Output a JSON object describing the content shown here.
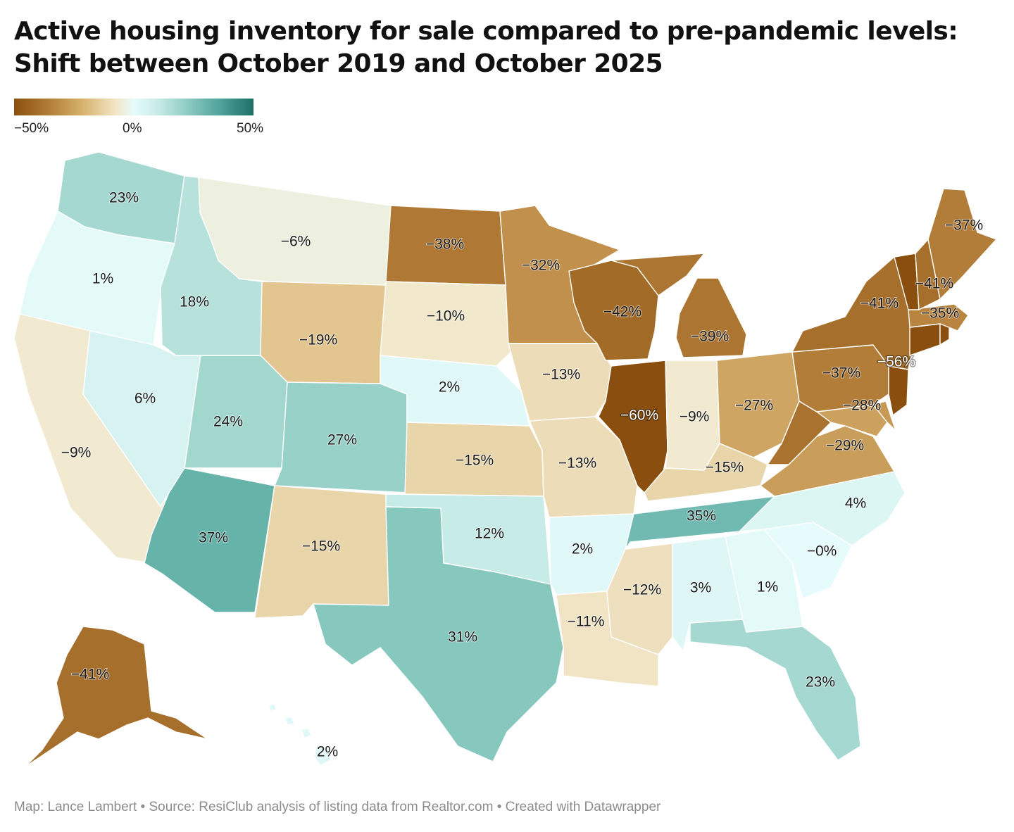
{
  "title": {
    "line1": "Active housing inventory for sale compared to pre-pandemic levels:",
    "line2": "Shift between October 2019 and October 2025"
  },
  "legend": {
    "min_label": "−50%",
    "mid_label": "0%",
    "max_label": "50%",
    "scale_min": -50,
    "scale_max": 50,
    "color_low": "#8a4f0e",
    "color_mid": "#e6fbfb",
    "color_high": "#1d6f66"
  },
  "states": [
    {
      "id": "WA",
      "value": 23,
      "label": "23%"
    },
    {
      "id": "OR",
      "value": 1,
      "label": "1%"
    },
    {
      "id": "CA",
      "value": -9,
      "label": "−9%"
    },
    {
      "id": "ID",
      "value": 18,
      "label": "18%"
    },
    {
      "id": "NV",
      "value": 6,
      "label": "6%"
    },
    {
      "id": "MT",
      "value": -6,
      "label": "−6%"
    },
    {
      "id": "WY",
      "value": -19,
      "label": "−19%"
    },
    {
      "id": "UT",
      "value": 24,
      "label": "24%"
    },
    {
      "id": "AZ",
      "value": 37,
      "label": "37%"
    },
    {
      "id": "CO",
      "value": 27,
      "label": "27%"
    },
    {
      "id": "NM",
      "value": -15,
      "label": "−15%"
    },
    {
      "id": "ND",
      "value": -38,
      "label": "−38%"
    },
    {
      "id": "SD",
      "value": -10,
      "label": "−10%"
    },
    {
      "id": "NE",
      "value": 2,
      "label": "2%"
    },
    {
      "id": "KS",
      "value": -15,
      "label": "−15%"
    },
    {
      "id": "OK",
      "value": 12,
      "label": "12%"
    },
    {
      "id": "TX",
      "value": 31,
      "label": "31%"
    },
    {
      "id": "MN",
      "value": -32,
      "label": "−32%"
    },
    {
      "id": "IA",
      "value": -13,
      "label": "−13%"
    },
    {
      "id": "MO",
      "value": -13,
      "label": "−13%"
    },
    {
      "id": "AR",
      "value": 2,
      "label": "2%"
    },
    {
      "id": "LA",
      "value": -11,
      "label": "−11%"
    },
    {
      "id": "WI",
      "value": -42,
      "label": "−42%"
    },
    {
      "id": "IL",
      "value": -60,
      "label": "−60%"
    },
    {
      "id": "MI",
      "value": -39,
      "label": "−39%"
    },
    {
      "id": "IN",
      "value": -9,
      "label": "−9%"
    },
    {
      "id": "OH",
      "value": -27,
      "label": "−27%"
    },
    {
      "id": "KY",
      "value": -15,
      "label": "−15%"
    },
    {
      "id": "TN",
      "value": 35,
      "label": "35%"
    },
    {
      "id": "MS",
      "value": -12,
      "label": "−12%"
    },
    {
      "id": "AL",
      "value": 3,
      "label": "3%"
    },
    {
      "id": "GA",
      "value": 1,
      "label": "1%"
    },
    {
      "id": "FL",
      "value": 23,
      "label": "23%"
    },
    {
      "id": "SC",
      "value": 0,
      "label": "−0%"
    },
    {
      "id": "NC",
      "value": 4,
      "label": "4%"
    },
    {
      "id": "VA",
      "value": -29,
      "label": "−29%"
    },
    {
      "id": "WV",
      "value": -40,
      "label": ""
    },
    {
      "id": "MD",
      "value": -28,
      "label": "−28%"
    },
    {
      "id": "DE",
      "value": -30,
      "label": ""
    },
    {
      "id": "PA",
      "value": -37,
      "label": "−37%"
    },
    {
      "id": "NJ",
      "value": -56,
      "label": "−56%"
    },
    {
      "id": "NY",
      "value": -41,
      "label": "−41%"
    },
    {
      "id": "CT",
      "value": -58,
      "label": ""
    },
    {
      "id": "RI",
      "value": -52,
      "label": ""
    },
    {
      "id": "MA",
      "value": -35,
      "label": "−35%"
    },
    {
      "id": "VT",
      "value": -55,
      "label": ""
    },
    {
      "id": "NH",
      "value": -41,
      "label": "−41%"
    },
    {
      "id": "ME",
      "value": -37,
      "label": "−37%"
    },
    {
      "id": "AK",
      "value": -41,
      "label": "−41%"
    },
    {
      "id": "HI",
      "value": 2,
      "label": "2%"
    }
  ],
  "footer": "Map: Lance Lambert • Source: ResiClub analysis of listing data from Realtor.com • Created with Datawrapper"
}
